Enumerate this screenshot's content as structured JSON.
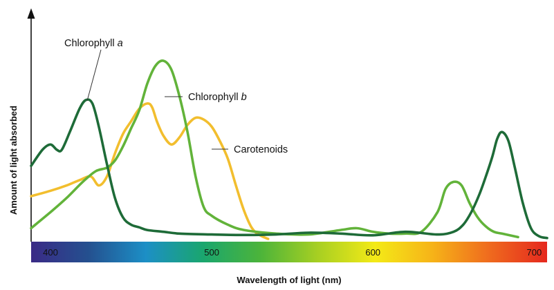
{
  "chart_data": {
    "type": "line",
    "title": "",
    "xlabel": "Wavelength of light (nm)",
    "ylabel": "Amount of light absorbed",
    "xlim": [
      388,
      708
    ],
    "ylim": [
      0,
      100
    ],
    "x_ticks": [
      400,
      500,
      600,
      700
    ],
    "x_tick_labels": [
      "400",
      "500",
      "600",
      "700"
    ],
    "grid": false,
    "legend": "none",
    "label_suffix": " a",
    "spectrum_bar": [
      "#3a2a86",
      "#24508f",
      "#1c8fc6",
      "#1aa66e",
      "#4cb43a",
      "#a7cf22",
      "#f4ea17",
      "#f6b318",
      "#ef6a1e",
      "#e5281e"
    ],
    "series": [
      {
        "name": "Chlorophyll",
        "name_style": "a",
        "color": "#1e6b38",
        "x": [
          388,
          395,
          400,
          404,
          407,
          412,
          418,
          422,
          426,
          430,
          435,
          440,
          445,
          450,
          455,
          460,
          470,
          480,
          500,
          520,
          540,
          560,
          580,
          600,
          620,
          640,
          650,
          656,
          661,
          666,
          670,
          674,
          677,
          680,
          684,
          688,
          693,
          698,
          703,
          708
        ],
        "y": [
          41,
          50,
          53,
          50,
          50,
          60,
          73,
          78,
          76,
          63,
          42,
          23,
          12,
          8,
          6.5,
          5,
          4,
          3,
          2.5,
          2.2,
          2.5,
          3.5,
          3,
          2,
          4,
          2.5,
          4,
          8,
          15,
          25,
          35,
          46,
          56,
          60,
          55,
          40,
          20,
          6,
          1.5,
          0.5
        ]
      },
      {
        "name": "Chlorophyll",
        "name_style": "b",
        "color": "#62b33a",
        "x": [
          388,
          400,
          410,
          420,
          428,
          435,
          440,
          445,
          450,
          455,
          460,
          465,
          470,
          475,
          480,
          485,
          490,
          495,
          500,
          510,
          520,
          540,
          560,
          580,
          590,
          600,
          610,
          620,
          630,
          640,
          645,
          650,
          655,
          660,
          665,
          670,
          675,
          680,
          690
        ],
        "y": [
          6,
          15,
          23,
          32,
          38,
          40,
          44,
          52,
          62,
          72,
          87,
          97,
          100,
          95,
          80,
          60,
          35,
          18,
          13,
          8,
          5,
          3,
          2.5,
          5,
          6,
          4,
          3,
          3,
          4,
          15,
          28,
          32,
          30,
          20,
          12,
          7,
          4,
          3,
          1
        ]
      },
      {
        "name": "Carotenoids",
        "name_style": "",
        "color": "#f2be2e",
        "x": [
          388,
          400,
          410,
          418,
          425,
          430,
          435,
          440,
          445,
          450,
          455,
          460,
          463,
          466,
          470,
          475,
          480,
          485,
          490,
          495,
          500,
          505,
          510,
          515,
          520,
          525,
          530,
          535
        ],
        "y": [
          24,
          27,
          30,
          33,
          35,
          30,
          35,
          48,
          59,
          66,
          73,
          76,
          74,
          66,
          58,
          53,
          57,
          64,
          68,
          67,
          63,
          55,
          45,
          30,
          16,
          6,
          2,
          0
        ]
      }
    ]
  }
}
